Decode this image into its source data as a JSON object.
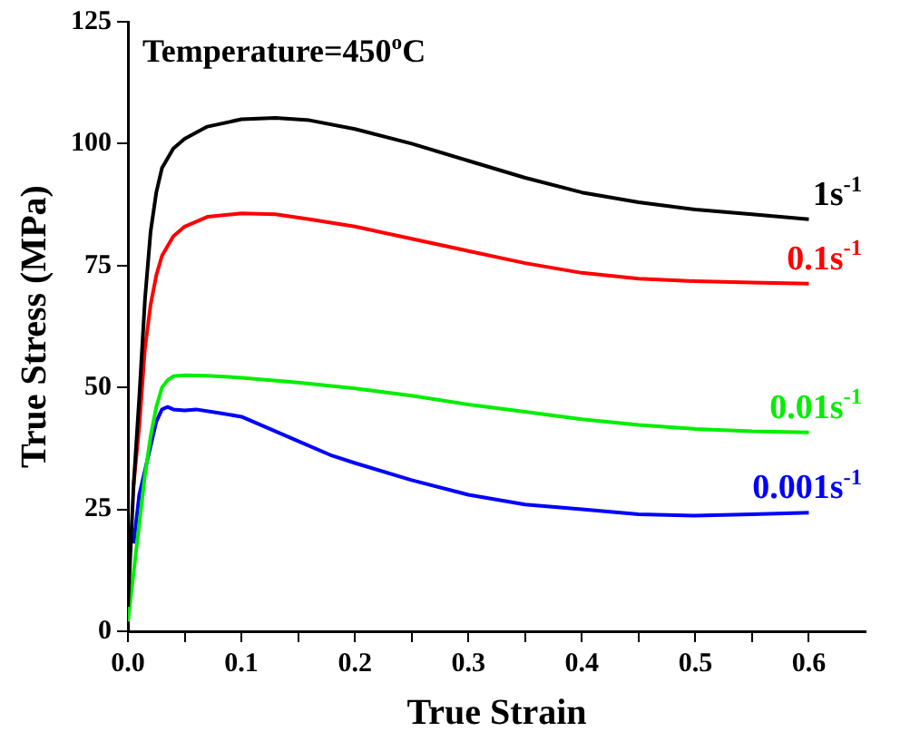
{
  "chart_data": {
    "type": "line",
    "xlabel": "True Strain",
    "ylabel": "True Stress (MPa)",
    "annotations": [
      "Temperature=450$^{o}$C"
    ],
    "xlim": [
      0,
      0.65
    ],
    "ylim": [
      0,
      125
    ],
    "xticks": [
      {
        "value": 0,
        "label": "0.0"
      },
      {
        "value": 0.05,
        "label": null
      },
      0.1,
      {
        "value": 0.15,
        "label": null
      },
      0.2,
      {
        "value": 0.25,
        "label": null
      },
      0.3,
      {
        "value": 0.35,
        "label": null
      },
      0.4,
      {
        "value": 0.45,
        "label": null
      },
      0.5,
      {
        "value": 0.55,
        "label": null
      },
      0.6
    ],
    "yticks": [
      0,
      25,
      50,
      75,
      100,
      125
    ],
    "grid": false,
    "legend": false,
    "marker": "none",
    "line_style": "solid",
    "series": [
      {
        "name": "1s$^{-1}$",
        "color": "#000000",
        "x": [
          0,
          0.005,
          0.01,
          0.015,
          0.02,
          0.025,
          0.03,
          0.04,
          0.05,
          0.07,
          0.1,
          0.13,
          0.16,
          0.2,
          0.25,
          0.3,
          0.35,
          0.4,
          0.45,
          0.5,
          0.55,
          0.6
        ],
        "values": [
          5,
          30,
          48,
          68,
          82,
          90,
          95,
          99,
          101,
          103.5,
          105,
          105.3,
          104.8,
          103,
          100,
          96.5,
          93,
          90,
          88,
          86.5,
          85.5,
          84.5
        ]
      },
      {
        "name": "0.1s$^{-1}$",
        "color": "#ff0000",
        "x": [
          0.005,
          0.01,
          0.015,
          0.02,
          0.025,
          0.03,
          0.04,
          0.05,
          0.07,
          0.1,
          0.13,
          0.16,
          0.2,
          0.25,
          0.3,
          0.35,
          0.4,
          0.45,
          0.5,
          0.55,
          0.6
        ],
        "values": [
          30,
          42,
          58,
          67,
          73,
          77,
          81,
          83,
          85,
          85.7,
          85.5,
          84.5,
          83,
          80.5,
          78,
          75.5,
          73.5,
          72.3,
          71.8,
          71.5,
          71.3
        ]
      },
      {
        "name": "0.01s$^{-1}$",
        "color": "#00ee00",
        "x": [
          0,
          0.005,
          0.01,
          0.015,
          0.02,
          0.025,
          0.03,
          0.035,
          0.04,
          0.05,
          0.07,
          0.1,
          0.15,
          0.2,
          0.25,
          0.3,
          0.35,
          0.4,
          0.45,
          0.5,
          0.55,
          0.6
        ],
        "values": [
          2,
          12,
          22,
          32,
          40,
          46,
          50,
          51.5,
          52.3,
          52.5,
          52.4,
          52,
          51,
          49.8,
          48.3,
          46.5,
          45,
          43.5,
          42.3,
          41.5,
          41,
          40.8
        ]
      },
      {
        "name": "0.001s$^{-1}$",
        "color": "#0000ff",
        "x": [
          0.005,
          0.01,
          0.015,
          0.02,
          0.025,
          0.03,
          0.035,
          0.04,
          0.05,
          0.06,
          0.08,
          0.1,
          0.12,
          0.15,
          0.18,
          0.2,
          0.25,
          0.3,
          0.35,
          0.4,
          0.45,
          0.5,
          0.55,
          0.6
        ],
        "values": [
          18,
          28,
          33,
          38,
          43,
          45.5,
          46,
          45.5,
          45.3,
          45.5,
          44.8,
          44,
          42,
          39,
          36,
          34.5,
          31,
          28,
          26,
          25,
          24,
          23.7,
          24,
          24.3
        ]
      }
    ]
  }
}
